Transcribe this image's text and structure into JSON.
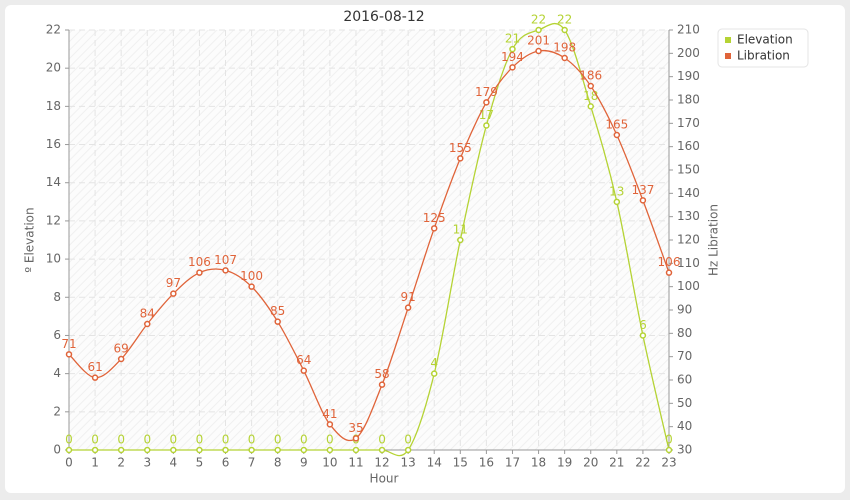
{
  "chart_data": {
    "type": "line",
    "title": "2016-08-12",
    "xlabel": "Hour",
    "ylabel": "º Elevation",
    "y2label": "Hz Libration",
    "x": [
      0,
      1,
      2,
      3,
      4,
      5,
      6,
      7,
      8,
      9,
      10,
      11,
      12,
      13,
      14,
      15,
      16,
      17,
      18,
      19,
      20,
      21,
      22,
      23
    ],
    "xlim": [
      0,
      23
    ],
    "xticks": [
      0,
      1,
      2,
      3,
      4,
      5,
      6,
      7,
      8,
      9,
      10,
      11,
      12,
      13,
      14,
      15,
      16,
      17,
      18,
      19,
      20,
      21,
      22,
      23
    ],
    "ylim": [
      0,
      22
    ],
    "yticks": [
      0,
      2,
      4,
      6,
      8,
      10,
      12,
      14,
      16,
      18,
      20,
      22
    ],
    "y2lim": [
      30,
      210
    ],
    "y2ticks": [
      30,
      40,
      50,
      60,
      70,
      80,
      90,
      100,
      110,
      120,
      130,
      140,
      150,
      160,
      170,
      180,
      190,
      200,
      210
    ],
    "grid": true,
    "legend": "right-top",
    "series": [
      {
        "name": "Elevation",
        "color": "#b5d334",
        "axis": "y",
        "values": [
          0,
          0,
          0,
          0,
          0,
          0,
          0,
          0,
          0,
          0,
          0,
          0,
          0,
          0,
          4,
          11,
          17,
          21,
          22,
          22,
          18,
          13,
          6,
          0
        ]
      },
      {
        "name": "Libration",
        "color": "#e0643a",
        "axis": "y2",
        "values": [
          71,
          61,
          69,
          84,
          97,
          106,
          107,
          100,
          85,
          64,
          41,
          35,
          58,
          91,
          125,
          155,
          179,
          194,
          201,
          198,
          186,
          165,
          137,
          106
        ]
      }
    ]
  }
}
